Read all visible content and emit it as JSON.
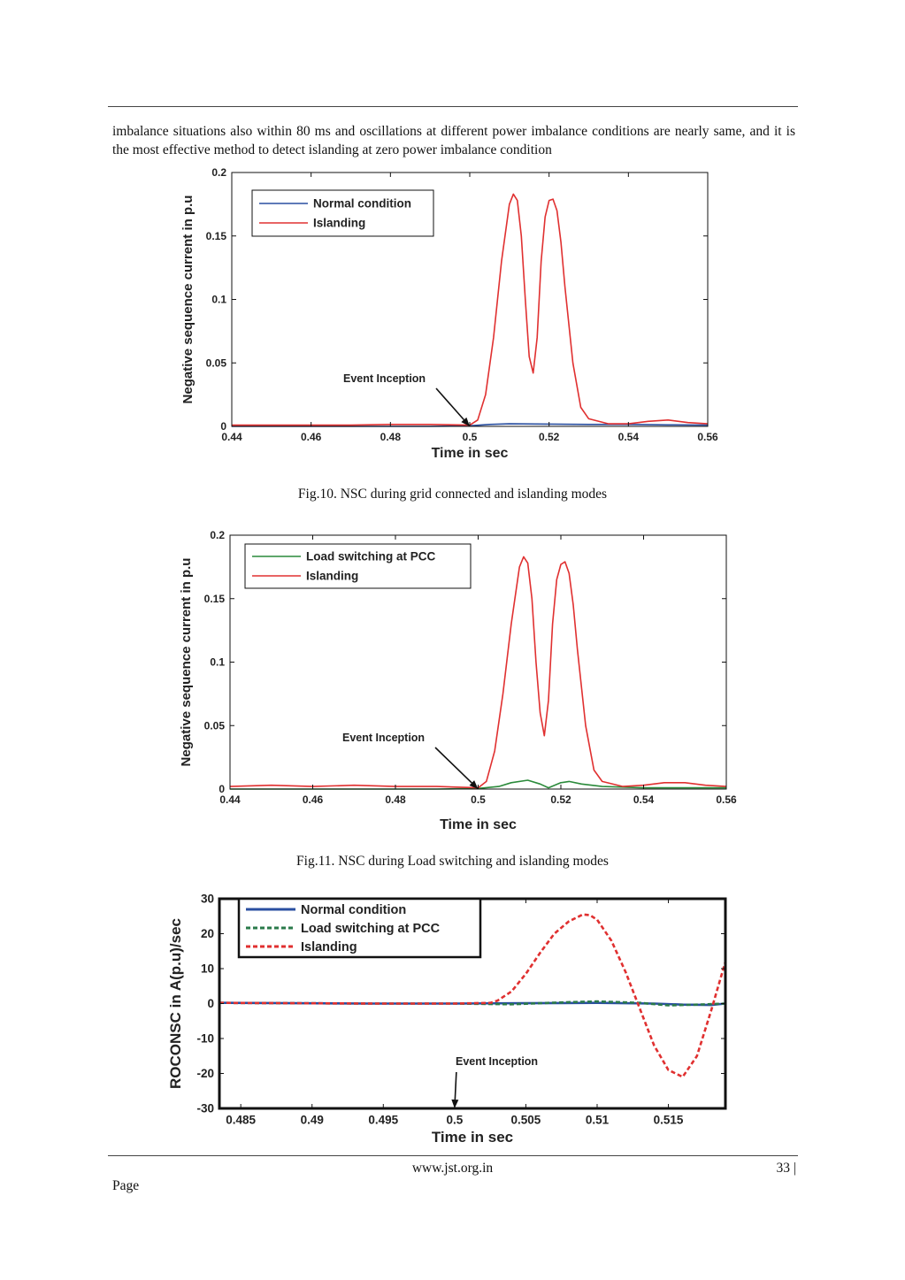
{
  "paragraph": "imbalance situations also within 80 ms and oscillations at different power imbalance conditions are nearly same, and it is the most effective method to detect islanding at zero power imbalance condition",
  "figures": [
    {
      "caption": "Fig.10.  NSC during grid connected and islanding modes",
      "chart_data": {
        "type": "line",
        "xlabel": "Time in sec",
        "ylabel": "Negative sequence current in p.u",
        "xlim": [
          0.44,
          0.56
        ],
        "ylim": [
          0,
          0.2
        ],
        "xticks": [
          "0.44",
          "0.46",
          "0.48",
          "0.5",
          "0.52",
          "0.54",
          "0.56"
        ],
        "yticks": [
          "0",
          "0.05",
          "0.1",
          "0.15",
          "0.2"
        ],
        "legend_position": "top-left",
        "annotation": "Event Inception",
        "annotation_target": [
          0.5,
          0.0
        ],
        "series": [
          {
            "name": "Normal condition",
            "color": "#2a4fa0",
            "dashed": false,
            "x": [
              0.44,
              0.49,
              0.5,
              0.505,
              0.51,
              0.52,
              0.53,
              0.54,
              0.55,
              0.56
            ],
            "y": [
              0.0,
              0.0,
              0.0005,
              0.0015,
              0.002,
              0.0018,
              0.0015,
              0.0015,
              0.0012,
              0.001
            ]
          },
          {
            "name": "Islanding",
            "color": "#e03030",
            "dashed": false,
            "x": [
              0.44,
              0.47,
              0.48,
              0.49,
              0.5,
              0.502,
              0.504,
              0.506,
              0.508,
              0.51,
              0.511,
              0.512,
              0.513,
              0.514,
              0.515,
              0.516,
              0.517,
              0.518,
              0.519,
              0.52,
              0.521,
              0.522,
              0.523,
              0.524,
              0.526,
              0.528,
              0.53,
              0.535,
              0.54,
              0.545,
              0.55,
              0.555,
              0.56
            ],
            "y": [
              0.001,
              0.001,
              0.0015,
              0.0015,
              0.001,
              0.005,
              0.025,
              0.07,
              0.13,
              0.175,
              0.183,
              0.178,
              0.15,
              0.1,
              0.055,
              0.042,
              0.07,
              0.13,
              0.165,
              0.178,
              0.179,
              0.17,
              0.145,
              0.11,
              0.05,
              0.015,
              0.006,
              0.002,
              0.002,
              0.004,
              0.005,
              0.003,
              0.002
            ]
          }
        ]
      }
    },
    {
      "caption": "Fig.11. NSC during Load switching and islanding modes",
      "chart_data": {
        "type": "line",
        "xlabel": "Time in sec",
        "ylabel": "Negative sequence current in p.u",
        "xlim": [
          0.44,
          0.56
        ],
        "ylim": [
          0,
          0.2
        ],
        "xticks": [
          "0.44",
          "0.46",
          "0.48",
          "0.5",
          "0.52",
          "0.54",
          "0.56"
        ],
        "yticks": [
          "0",
          "0.05",
          "0.1",
          "0.15",
          "0.2"
        ],
        "legend_position": "top-left",
        "annotation": "Event Inception",
        "annotation_target": [
          0.5,
          0.0
        ],
        "series": [
          {
            "name": "Load switching at PCC",
            "color": "#2a8a3a",
            "dashed": false,
            "x": [
              0.44,
              0.49,
              0.5,
              0.505,
              0.508,
              0.512,
              0.515,
              0.517,
              0.52,
              0.522,
              0.525,
              0.53,
              0.54,
              0.56
            ],
            "y": [
              0.0,
              0.0,
              0.0005,
              0.002,
              0.005,
              0.007,
              0.004,
              0.001,
              0.005,
              0.006,
              0.004,
              0.002,
              0.001,
              0.001
            ]
          },
          {
            "name": "Islanding",
            "color": "#e03030",
            "dashed": false,
            "x": [
              0.44,
              0.45,
              0.46,
              0.47,
              0.48,
              0.49,
              0.5,
              0.502,
              0.504,
              0.506,
              0.508,
              0.51,
              0.511,
              0.512,
              0.513,
              0.514,
              0.515,
              0.516,
              0.517,
              0.518,
              0.519,
              0.52,
              0.521,
              0.522,
              0.523,
              0.524,
              0.526,
              0.528,
              0.53,
              0.535,
              0.54,
              0.545,
              0.55,
              0.555,
              0.56
            ],
            "y": [
              0.002,
              0.003,
              0.002,
              0.003,
              0.002,
              0.002,
              0.001,
              0.006,
              0.03,
              0.075,
              0.13,
              0.175,
              0.183,
              0.178,
              0.15,
              0.1,
              0.06,
              0.042,
              0.07,
              0.13,
              0.165,
              0.177,
              0.179,
              0.17,
              0.145,
              0.11,
              0.05,
              0.015,
              0.006,
              0.002,
              0.003,
              0.005,
              0.005,
              0.003,
              0.002
            ]
          }
        ]
      }
    },
    {
      "caption": "",
      "chart_data": {
        "type": "line",
        "xlabel": "Time in sec",
        "ylabel": "ROCONSC in A(p.u)/sec",
        "xlim": [
          0.4835,
          0.519
        ],
        "ylim": [
          -30,
          30
        ],
        "xticks": [
          "0.485",
          "0.49",
          "0.495",
          "0.5",
          "0.505",
          "0.51",
          "0.515"
        ],
        "yticks": [
          "30",
          "20",
          "10",
          "0",
          "-10",
          "-20",
          "-30"
        ],
        "legend_position": "top-left",
        "annotation": "Event Inception",
        "annotation_target": [
          0.5,
          -30
        ],
        "series": [
          {
            "name": "Normal condition",
            "color": "#2a4fa0",
            "dashed": false,
            "x": [
              0.4835,
              0.494,
              0.5,
              0.505,
              0.51,
              0.514,
              0.516,
              0.518,
              0.519
            ],
            "y": [
              0.2,
              0.0,
              0.0,
              0.1,
              0.2,
              0.0,
              -0.3,
              -0.4,
              0.0
            ]
          },
          {
            "name": "Load switching at PCC",
            "color": "#2a7a4a",
            "dashed": true,
            "x": [
              0.4835,
              0.494,
              0.5,
              0.504,
              0.506,
              0.508,
              0.51,
              0.513,
              0.515,
              0.517,
              0.519
            ],
            "y": [
              0.2,
              0.0,
              0.0,
              -0.2,
              0.1,
              0.4,
              0.6,
              0.2,
              -0.5,
              -0.3,
              0.0
            ]
          },
          {
            "name": "Islanding",
            "color": "#e03030",
            "dashed": true,
            "x": [
              0.4835,
              0.4945,
              0.5,
              0.5025,
              0.503,
              0.504,
              0.505,
              0.506,
              0.507,
              0.508,
              0.509,
              0.5095,
              0.51,
              0.511,
              0.512,
              0.513,
              0.514,
              0.515,
              0.516,
              0.517,
              0.518,
              0.519
            ],
            "y": [
              0.2,
              0.0,
              0.0,
              0.2,
              0.8,
              3.5,
              8.5,
              14.5,
              20.0,
              23.5,
              25.5,
              25.3,
              24.0,
              18.0,
              9.0,
              -1.5,
              -12.0,
              -19.0,
              -21.0,
              -15.0,
              -2.0,
              12.0
            ]
          }
        ]
      }
    }
  ],
  "footer": {
    "url": "www.jst.org.in",
    "page": "33 |",
    "page_word": "Page"
  }
}
